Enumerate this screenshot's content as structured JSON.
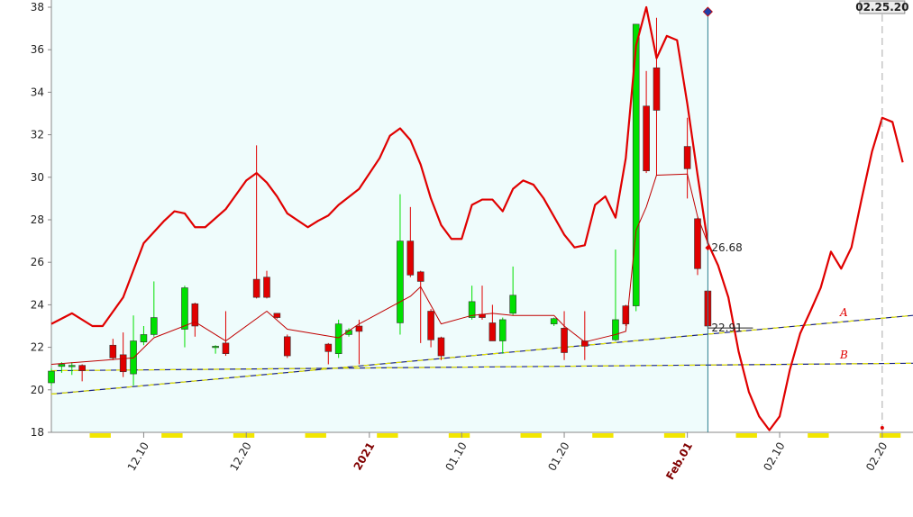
{
  "chart_data": {
    "type": "candlestick",
    "xlim": [
      "12.01",
      "02.23"
    ],
    "ylim": [
      18,
      38
    ],
    "yticks": [
      18,
      20,
      22,
      24,
      26,
      28,
      30,
      32,
      34,
      36,
      38
    ],
    "xticks": [
      "12.10",
      "12.20",
      {
        "value": "01.01",
        "label": "2021",
        "color": "#800000"
      },
      "01.10",
      "01.20",
      {
        "value": "02.01",
        "label": "Feb.01",
        "color": "#800000"
      },
      "02.10",
      "02.20"
    ],
    "up_color": "#00e000",
    "down_color": "#e00000",
    "candles": {
      "x": [
        "12.01",
        "12.02",
        "12.03",
        "12.04",
        "12.07",
        "12.08",
        "12.09",
        "12.10",
        "12.11",
        "12.14",
        "12.15",
        "12.17",
        "12.18",
        "12.21",
        "12.22",
        "12.23",
        "12.24",
        "12.28",
        "12.29",
        "12.30",
        "12.31",
        "01.04",
        "01.05",
        "01.06",
        "01.07",
        "01.08",
        "01.11",
        "01.12",
        "01.13",
        "01.14",
        "01.15",
        "01.19",
        "01.20",
        "01.22",
        "01.25",
        "01.26",
        "01.27",
        "01.28",
        "01.29",
        "02.01",
        "02.02",
        "02.03"
      ],
      "open": [
        20.33,
        21.1,
        21.1,
        21.15,
        22.1,
        21.65,
        20.75,
        22.25,
        22.6,
        22.85,
        24.05,
        22.0,
        22.2,
        25.2,
        25.3,
        23.6,
        22.5,
        22.15,
        21.7,
        22.6,
        23.0,
        23.15,
        27.0,
        25.55,
        23.7,
        22.45,
        23.4,
        23.55,
        23.15,
        22.3,
        23.6,
        23.1,
        22.9,
        22.3,
        22.35,
        23.95,
        23.95,
        33.35,
        35.15,
        31.45,
        28.05,
        24.65
      ],
      "high": [
        21.0,
        21.3,
        21.3,
        21.2,
        22.4,
        22.7,
        23.5,
        23.0,
        25.1,
        24.9,
        24.1,
        22.1,
        23.7,
        31.5,
        25.6,
        23.6,
        22.6,
        22.2,
        23.3,
        22.9,
        23.3,
        29.2,
        28.6,
        25.6,
        23.8,
        22.5,
        24.9,
        24.9,
        24.0,
        23.4,
        25.8,
        23.4,
        23.7,
        23.7,
        26.6,
        24.0,
        37.2,
        35.0,
        37.5,
        32.8,
        28.1,
        24.7
      ],
      "low": [
        20.2,
        20.8,
        20.7,
        20.4,
        21.4,
        20.6,
        20.2,
        22.1,
        22.5,
        22.0,
        22.5,
        21.7,
        21.6,
        24.3,
        24.3,
        23.35,
        21.5,
        21.2,
        21.5,
        22.5,
        21.2,
        22.6,
        25.3,
        22.2,
        22.0,
        21.4,
        23.3,
        23.3,
        22.3,
        21.7,
        23.5,
        23.0,
        21.4,
        21.4,
        22.3,
        23.0,
        23.7,
        30.2,
        30.1,
        29.0,
        25.4,
        22.9
      ],
      "close": [
        20.88,
        21.2,
        21.15,
        20.9,
        21.5,
        20.85,
        22.3,
        22.6,
        23.4,
        24.8,
        23.0,
        22.05,
        21.7,
        24.35,
        24.35,
        23.4,
        21.6,
        21.8,
        23.1,
        22.8,
        22.75,
        27.0,
        25.4,
        25.1,
        22.35,
        21.6,
        24.15,
        23.4,
        22.3,
        23.3,
        24.45,
        23.35,
        21.75,
        22.05,
        23.3,
        23.1,
        37.2,
        30.3,
        33.15,
        30.4,
        25.7,
        23.0
      ]
    },
    "upper": {
      "color": "#e00000",
      "x": [
        "12.01",
        "12.03",
        "12.05",
        "12.06",
        "12.08",
        "12.10",
        "12.12",
        "12.13",
        "12.14",
        "12.15",
        "12.16",
        "12.18",
        "12.20",
        "12.21",
        "12.22",
        "12.23",
        "12.24",
        "12.26",
        "12.27",
        "12.28",
        "12.29",
        "12.31",
        "01.02",
        "01.03",
        "01.04",
        "01.05",
        "01.06",
        "01.07",
        "01.08",
        "01.09",
        "01.10",
        "01.11",
        "01.12",
        "01.13",
        "01.14",
        "01.15",
        "01.16",
        "01.17",
        "01.18",
        "01.19",
        "01.20",
        "01.21",
        "01.22",
        "01.23",
        "01.24",
        "01.25",
        "01.26",
        "01.27",
        "01.28",
        "01.29",
        "01.30",
        "01.31",
        "02.01",
        "02.02",
        "02.03",
        "02.04",
        "02.05",
        "02.06",
        "02.07",
        "02.08",
        "02.09",
        "02.10",
        "02.11",
        "02.12",
        "02.13",
        "02.14",
        "02.15",
        "02.16",
        "02.17",
        "02.18",
        "02.19",
        "02.20",
        "02.21",
        "02.22"
      ],
      "values": [
        23.1,
        23.6,
        23.0,
        23.0,
        24.35,
        26.9,
        27.95,
        28.4,
        28.3,
        27.65,
        27.65,
        28.5,
        29.85,
        30.2,
        29.75,
        29.1,
        28.3,
        27.65,
        27.95,
        28.2,
        28.7,
        29.45,
        30.9,
        31.95,
        32.3,
        31.75,
        30.6,
        29.0,
        27.75,
        27.1,
        27.1,
        28.7,
        28.95,
        28.95,
        28.4,
        29.45,
        29.85,
        29.65,
        29.0,
        28.15,
        27.3,
        26.7,
        26.8,
        28.7,
        29.1,
        28.1,
        30.9,
        36.2,
        38.0,
        35.6,
        36.65,
        36.45,
        33.45,
        30.1,
        26.9,
        25.85,
        24.35,
        21.8,
        19.9,
        18.75,
        18.1,
        18.75,
        20.95,
        22.65,
        23.7,
        24.8,
        26.5,
        25.7,
        26.7,
        29.0,
        31.2,
        32.8,
        32.6,
        30.7
      ]
    },
    "average": {
      "color": "#c00000",
      "x": [
        "12.01",
        "12.09",
        "12.11",
        "12.15",
        "12.18",
        "12.22",
        "12.24",
        "12.29",
        "12.31",
        "01.05",
        "01.06",
        "01.08",
        "01.11",
        "01.13",
        "01.15",
        "01.19",
        "01.20",
        "01.22",
        "01.25",
        "01.26",
        "01.27",
        "01.28",
        "01.29",
        "02.01",
        "02.02",
        "02.03"
      ],
      "values": [
        21.2,
        21.5,
        22.45,
        23.2,
        22.3,
        23.7,
        22.85,
        22.45,
        23.1,
        24.4,
        24.85,
        23.1,
        23.5,
        23.6,
        23.5,
        23.5,
        23.0,
        22.25,
        22.6,
        22.75,
        27.5,
        28.6,
        30.1,
        30.15,
        28.15,
        26.9
      ]
    },
    "trend_lines": [
      {
        "name": "A",
        "x": [
          "12.01",
          "02.23"
        ],
        "values": [
          19.8,
          23.5
        ]
      },
      {
        "name": "B",
        "x": [
          "12.01",
          "02.23"
        ],
        "values": [
          20.9,
          21.25
        ]
      }
    ],
    "cursor": {
      "x": "02.03",
      "markers": [
        26.68,
        22.91
      ]
    },
    "date_marker": {
      "x": "02.20",
      "label": "02.25.20"
    }
  }
}
